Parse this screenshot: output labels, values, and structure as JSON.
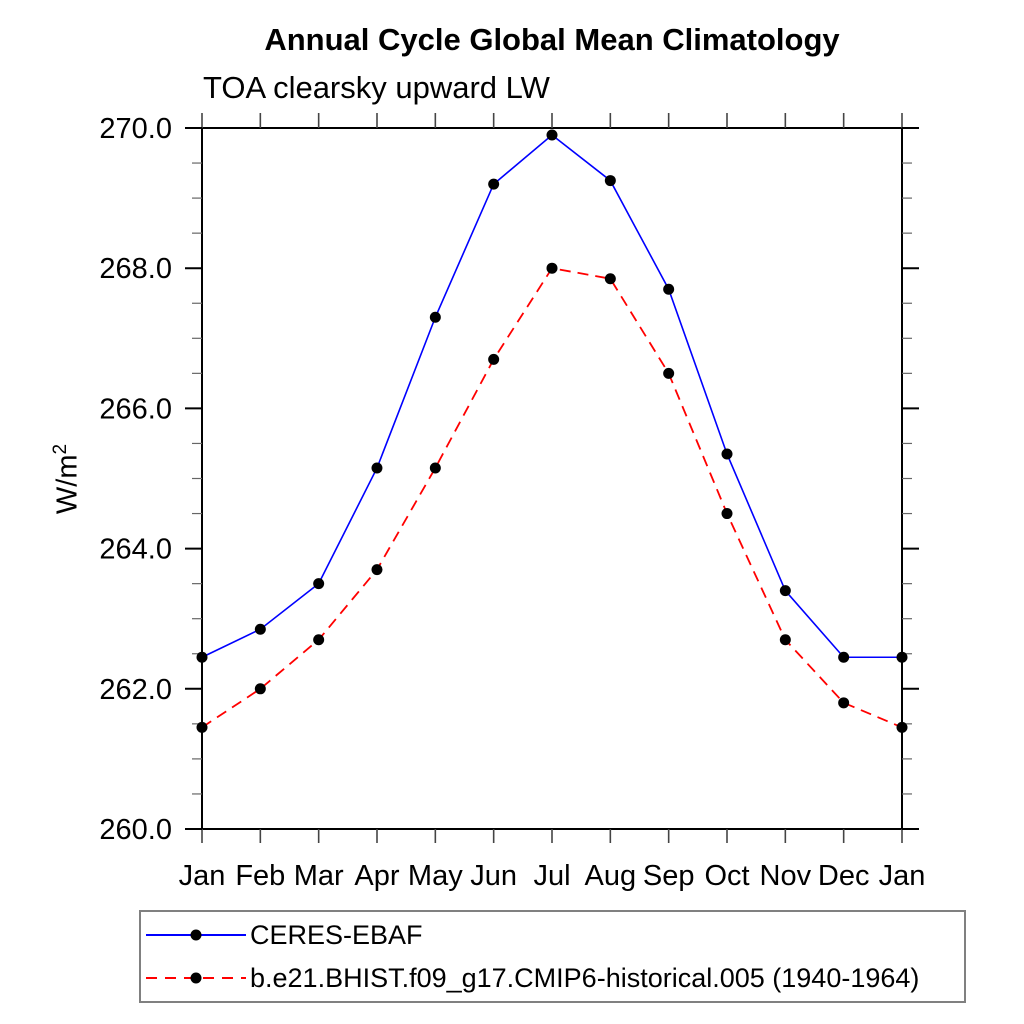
{
  "title": "Annual Cycle Global Mean Climatology",
  "subtitle": "TOA clearsky upward LW",
  "chart_data": {
    "type": "line",
    "x_categories": [
      "Jan",
      "Feb",
      "Mar",
      "Apr",
      "May",
      "Jun",
      "Jul",
      "Aug",
      "Sep",
      "Oct",
      "Nov",
      "Dec",
      "Jan"
    ],
    "ylabel_base": "W/m",
    "ylabel_sup": "2",
    "ylim": [
      260.0,
      270.0
    ],
    "y_major_ticks": [
      260.0,
      262.0,
      264.0,
      266.0,
      268.0,
      270.0
    ],
    "y_tick_labels": [
      "260.0",
      "262.0",
      "264.0",
      "266.0",
      "268.0",
      "270.0"
    ],
    "y_major_step": 2.0,
    "y_minor_step": 0.5,
    "grid": false,
    "legend_position": "bottom-left",
    "axis_color": "#000000",
    "marker_shape": "filled-circle",
    "series": [
      {
        "name": "CERES-EBAF",
        "color": "#0000ff",
        "style": "solid",
        "marker_color": "#000000",
        "values": [
          262.45,
          262.85,
          263.5,
          265.15,
          267.3,
          269.2,
          269.9,
          269.25,
          267.7,
          265.35,
          263.4,
          262.45,
          262.45
        ]
      },
      {
        "name": "b.e21.BHIST.f09_g17.CMIP6-historical.005 (1940-1964)",
        "color": "#ff0000",
        "style": "dashed",
        "marker_color": "#000000",
        "values": [
          261.45,
          262.0,
          262.7,
          263.7,
          265.15,
          266.7,
          268.0,
          267.85,
          266.5,
          264.5,
          262.7,
          261.8,
          261.45
        ]
      }
    ]
  }
}
